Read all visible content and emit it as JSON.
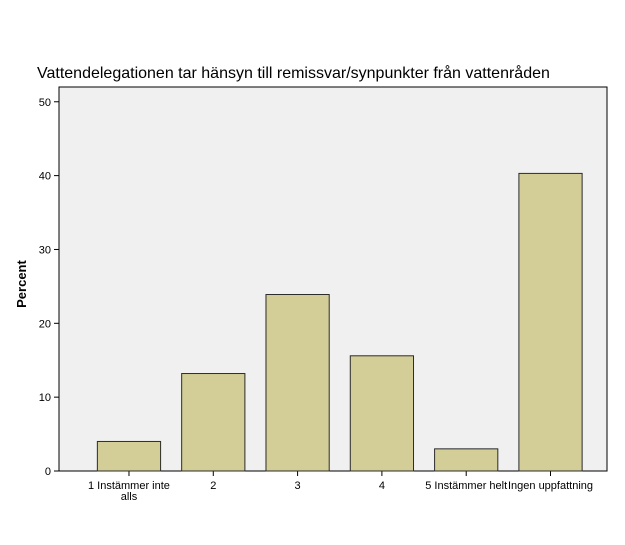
{
  "chart_data": {
    "type": "bar",
    "title": "Vattendelegationen tar hänsyn till remissvar/synpunkter från vattenråden",
    "xlabel": "",
    "ylabel": "Percent",
    "ylim": [
      0,
      52
    ],
    "yticks": [
      0,
      10,
      20,
      30,
      40,
      50
    ],
    "grid": false,
    "categories": [
      [
        "1 Instämmer inte",
        "alls"
      ],
      [
        "2"
      ],
      [
        "3"
      ],
      [
        "4"
      ],
      [
        "5 Instämmer helt"
      ],
      [
        "Ingen uppfattning"
      ]
    ],
    "values": [
      4.0,
      13.2,
      23.9,
      15.6,
      3.0,
      40.3
    ],
    "colors": {
      "plot_background": "#f0f0f0",
      "bar_fill": "#d3ce97",
      "bar_stroke": "#2b2b2b",
      "axis": "#000000"
    }
  }
}
